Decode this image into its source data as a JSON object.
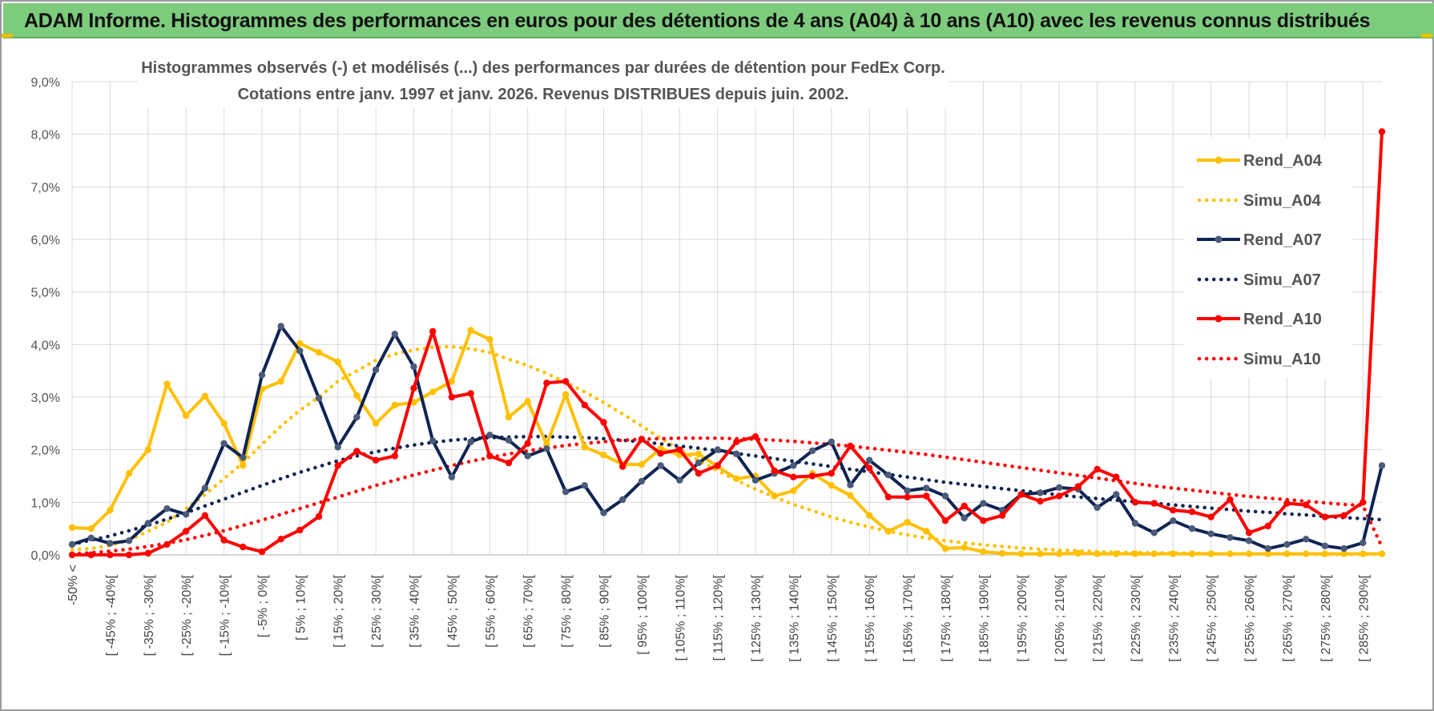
{
  "banner": {
    "title": "ADAM Informe. Histogrammes des performances en euros pour des détentions de 4 ans (A04) à 10 ans (A10) avec les revenus connus distribués"
  },
  "colors": {
    "banner": "#7dcb7d",
    "grid": "#d9d9d9",
    "A04": "#ffc000",
    "A07": "#0f2452",
    "A10": "#ff0000"
  },
  "chart_data": {
    "type": "line",
    "title": "Histogrammes observés (-) et modélisés (...) des performances par durées de détention pour FedEx Corp.",
    "subtitle": "Cotations entre janv. 1997 et janv. 2026. Revenus DISTRIBUES depuis juin. 2002.",
    "ylim": [
      0,
      9
    ],
    "y_ticks": [
      "0,0%",
      "1,0%",
      "2,0%",
      "3,0%",
      "4,0%",
      "5,0%",
      "6,0%",
      "7,0%",
      "8,0%",
      "9,0%"
    ],
    "grid": true,
    "legend_position": "right",
    "x_labels": [
      "-50% <",
      "[ -45% ; -40%[",
      "[ -35% ; -30%[",
      "[ -25% ; -20%[",
      "[ -15% ; -10%[",
      "[ -5% ; 0%[",
      "[ 5% ; 10%[",
      "[ 15% ; 20%[",
      "[ 25% ; 30%[",
      "[ 35% ; 40%[",
      "[ 45% ; 50%[",
      "[ 55% ; 60%[",
      "[ 65% ; 70%[",
      "[ 75% ; 80%[",
      "[ 85% ; 90%[",
      "[ 95% ; 100%[",
      "[ 105% ; 110%[",
      "[ 115% ; 120%[",
      "[ 125% ; 130%[",
      "[ 135% ; 140%[",
      "[ 145% ; 150%[",
      "[ 155% ; 160%[",
      "[ 165% ; 170%[",
      "[ 175% ; 180%[",
      "[ 185% ; 190%[",
      "[ 195% ; 200%[",
      "[ 205% ; 210%[",
      "[ 215% ; 220%[",
      "[ 225% ; 230%[",
      "[ 235% ; 240%[",
      "[ 245% ; 250%[",
      "[ 255% ; 260%[",
      "[ 265% ; 270%[",
      "[ 275% ; 280%[",
      "[ 285% ; 290%["
    ],
    "series": [
      {
        "name": "Rend_A04",
        "key": "A04",
        "style": "solid",
        "values": [
          0.52,
          0.5,
          0.85,
          1.55,
          2.0,
          3.25,
          2.65,
          3.02,
          2.5,
          1.7,
          3.15,
          3.3,
          4.02,
          3.85,
          3.67,
          3.03,
          2.5,
          2.85,
          2.9,
          3.1,
          3.3,
          4.27,
          4.1,
          2.62,
          2.92,
          2.1,
          3.05,
          2.05,
          1.9,
          1.72,
          1.72,
          2.02,
          1.9,
          1.92,
          1.68,
          1.45,
          1.5,
          1.12,
          1.22,
          1.55,
          1.32,
          1.13,
          0.75,
          0.45,
          0.62,
          0.45,
          0.12,
          0.14,
          0.06,
          0.03,
          0.02,
          0.02,
          0.02,
          0.03,
          0.02,
          0.02,
          0.02,
          0.02,
          0.02,
          0.02,
          0.02,
          0.02,
          0.02,
          0.02,
          0.02,
          0.02,
          0.02,
          0.02,
          0.02,
          0.02
        ]
      },
      {
        "name": "Simu_A04",
        "key": "A04",
        "style": "dotted",
        "values": [
          0.1,
          0.12,
          0.18,
          0.28,
          0.45,
          0.62,
          0.88,
          1.15,
          1.45,
          1.75,
          2.1,
          2.45,
          2.75,
          3.0,
          3.3,
          3.5,
          3.7,
          3.82,
          3.9,
          3.95,
          3.96,
          3.92,
          3.85,
          3.72,
          3.6,
          3.45,
          3.28,
          3.1,
          2.9,
          2.68,
          2.45,
          2.22,
          2.0,
          1.8,
          1.6,
          1.42,
          1.25,
          1.1,
          0.96,
          0.84,
          0.72,
          0.62,
          0.53,
          0.45,
          0.38,
          0.32,
          0.27,
          0.23,
          0.19,
          0.16,
          0.13,
          0.11,
          0.09,
          0.08,
          0.06,
          0.05,
          0.045,
          0.04,
          0.035,
          0.03,
          0.025,
          0.02,
          0.02,
          0.018,
          0.015,
          0.012,
          0.01,
          0.01,
          0.01,
          0.01
        ]
      },
      {
        "name": "Rend_A07",
        "key": "A07",
        "style": "solid",
        "values": [
          0.2,
          0.32,
          0.22,
          0.27,
          0.6,
          0.88,
          0.77,
          1.27,
          2.12,
          1.85,
          3.42,
          4.35,
          3.88,
          2.98,
          2.05,
          2.62,
          3.52,
          4.2,
          3.58,
          2.17,
          1.48,
          2.15,
          2.28,
          2.18,
          1.88,
          2.02,
          1.2,
          1.32,
          0.8,
          1.05,
          1.4,
          1.7,
          1.42,
          1.75,
          2.0,
          1.92,
          1.42,
          1.55,
          1.7,
          1.98,
          2.15,
          1.33,
          1.8,
          1.52,
          1.22,
          1.27,
          1.12,
          0.7,
          0.98,
          0.85,
          1.15,
          1.18,
          1.28,
          1.25,
          0.9,
          1.15,
          0.6,
          0.42,
          0.65,
          0.5,
          0.4,
          0.33,
          0.27,
          0.12,
          0.2,
          0.3,
          0.17,
          0.12,
          0.23,
          1.7
        ]
      },
      {
        "name": "Simu_A07",
        "key": "A07",
        "style": "dotted",
        "values": [
          0.2,
          0.28,
          0.36,
          0.46,
          0.56,
          0.68,
          0.8,
          0.93,
          1.06,
          1.19,
          1.32,
          1.45,
          1.57,
          1.68,
          1.79,
          1.88,
          1.96,
          2.03,
          2.09,
          2.14,
          2.18,
          2.21,
          2.23,
          2.24,
          2.25,
          2.25,
          2.24,
          2.23,
          2.21,
          2.18,
          2.15,
          2.11,
          2.07,
          2.03,
          1.98,
          1.93,
          1.88,
          1.83,
          1.78,
          1.73,
          1.68,
          1.63,
          1.58,
          1.53,
          1.48,
          1.43,
          1.38,
          1.34,
          1.3,
          1.26,
          1.22,
          1.18,
          1.14,
          1.1,
          1.07,
          1.04,
          1.01,
          0.98,
          0.95,
          0.92,
          0.89,
          0.86,
          0.83,
          0.81,
          0.78,
          0.76,
          0.73,
          0.71,
          0.69,
          0.67
        ]
      },
      {
        "name": "Rend_A10",
        "key": "A10",
        "style": "solid",
        "values": [
          0.0,
          0.0,
          0.0,
          0.0,
          0.03,
          0.2,
          0.45,
          0.75,
          0.28,
          0.15,
          0.06,
          0.3,
          0.47,
          0.73,
          1.7,
          1.97,
          1.8,
          1.88,
          3.17,
          4.25,
          3.0,
          3.07,
          1.88,
          1.75,
          2.12,
          3.27,
          3.3,
          2.85,
          2.52,
          1.68,
          2.2,
          1.93,
          2.0,
          1.55,
          1.7,
          2.15,
          2.25,
          1.6,
          1.48,
          1.5,
          1.55,
          2.07,
          1.65,
          1.1,
          1.1,
          1.12,
          0.65,
          0.93,
          0.65,
          0.75,
          1.15,
          1.02,
          1.12,
          1.3,
          1.63,
          1.48,
          1.0,
          0.98,
          0.85,
          0.82,
          0.72,
          1.05,
          0.42,
          0.55,
          0.98,
          0.95,
          0.72,
          0.75,
          1.0,
          8.05
        ]
      },
      {
        "name": "Simu_A10",
        "key": "A10",
        "style": "dotted",
        "values": [
          0.02,
          0.04,
          0.07,
          0.11,
          0.16,
          0.22,
          0.29,
          0.37,
          0.46,
          0.56,
          0.66,
          0.77,
          0.88,
          0.99,
          1.1,
          1.21,
          1.32,
          1.42,
          1.52,
          1.61,
          1.7,
          1.78,
          1.85,
          1.92,
          1.98,
          2.03,
          2.08,
          2.12,
          2.15,
          2.18,
          2.2,
          2.21,
          2.22,
          2.22,
          2.22,
          2.21,
          2.2,
          2.18,
          2.16,
          2.13,
          2.1,
          2.07,
          2.03,
          1.99,
          1.95,
          1.91,
          1.86,
          1.81,
          1.76,
          1.71,
          1.66,
          1.61,
          1.56,
          1.51,
          1.46,
          1.41,
          1.36,
          1.31,
          1.27,
          1.23,
          1.19,
          1.15,
          1.11,
          1.08,
          1.05,
          1.02,
          0.99,
          0.96,
          0.94,
          0.15
        ]
      }
    ]
  }
}
